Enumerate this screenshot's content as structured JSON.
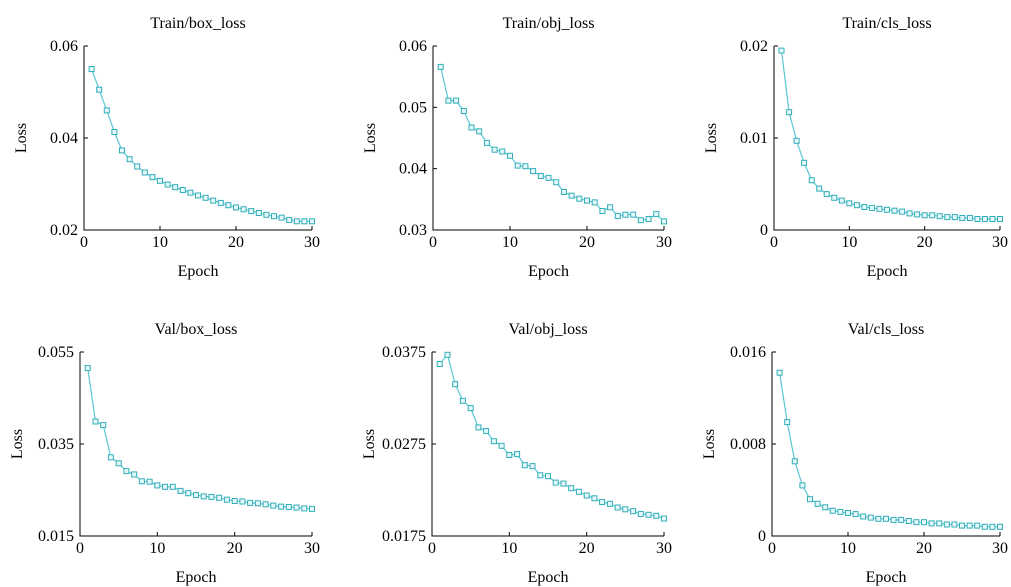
{
  "chart_data": [
    {
      "type": "line",
      "title": "Train/box_loss",
      "xlabel": "Epoch",
      "ylabel": "Loss",
      "xlim": [
        0,
        30
      ],
      "ylim": [
        0.02,
        0.06
      ],
      "xticks": [
        "0",
        "10",
        "20",
        "30"
      ],
      "yticks": [
        "0.02",
        "0.04",
        "0.06"
      ],
      "series": [
        {
          "x": [
            1,
            2,
            3,
            4,
            5,
            6,
            7,
            8,
            9,
            10,
            11,
            12,
            13,
            14,
            15,
            16,
            17,
            18,
            19,
            20,
            21,
            22,
            23,
            24,
            25,
            26,
            27,
            28,
            29,
            30
          ],
          "values": [
            0.055,
            0.0505,
            0.046,
            0.0413,
            0.0373,
            0.0354,
            0.0338,
            0.0325,
            0.0315,
            0.0307,
            0.0299,
            0.0293,
            0.0287,
            0.0281,
            0.0275,
            0.027,
            0.0264,
            0.0259,
            0.0254,
            0.0249,
            0.0245,
            0.0241,
            0.0237,
            0.0233,
            0.023,
            0.0227,
            0.0222,
            0.0219,
            0.0219,
            0.0219
          ]
        }
      ]
    },
    {
      "type": "line",
      "title": "Train/obj_loss",
      "xlabel": "Epoch",
      "ylabel": "Loss",
      "xlim": [
        0,
        30
      ],
      "ylim": [
        0.03,
        0.06
      ],
      "xticks": [
        "0",
        "10",
        "20",
        "30"
      ],
      "yticks": [
        "0.03",
        "0.04",
        "0.05",
        "0.06"
      ],
      "series": [
        {
          "x": [
            1,
            2,
            3,
            4,
            5,
            6,
            7,
            8,
            9,
            10,
            11,
            12,
            13,
            14,
            15,
            16,
            17,
            18,
            19,
            20,
            21,
            22,
            23,
            24,
            25,
            26,
            27,
            28,
            29,
            30
          ],
          "values": [
            0.0566,
            0.0511,
            0.0511,
            0.0494,
            0.0467,
            0.0461,
            0.0442,
            0.0431,
            0.0428,
            0.0421,
            0.0405,
            0.0404,
            0.0396,
            0.0388,
            0.0385,
            0.0378,
            0.0362,
            0.0356,
            0.0351,
            0.0348,
            0.0345,
            0.0331,
            0.0337,
            0.0323,
            0.0325,
            0.0325,
            0.0316,
            0.0318,
            0.0326,
            0.0314
          ]
        }
      ]
    },
    {
      "type": "line",
      "title": "Train/cls_loss",
      "xlabel": "Epoch",
      "ylabel": "Loss",
      "xlim": [
        0,
        30
      ],
      "ylim": [
        0,
        0.02
      ],
      "xticks": [
        "0",
        "10",
        "20",
        "30"
      ],
      "yticks": [
        "0",
        "0.01",
        "0.02"
      ],
      "series": [
        {
          "x": [
            1,
            2,
            3,
            4,
            5,
            6,
            7,
            8,
            9,
            10,
            11,
            12,
            13,
            14,
            15,
            16,
            17,
            18,
            19,
            20,
            21,
            22,
            23,
            24,
            25,
            26,
            27,
            28,
            29,
            30
          ],
          "values": [
            0.0195,
            0.0128,
            0.0097,
            0.0073,
            0.0054,
            0.0045,
            0.0039,
            0.0035,
            0.0032,
            0.0029,
            0.0027,
            0.0025,
            0.0024,
            0.0023,
            0.0022,
            0.0021,
            0.002,
            0.0018,
            0.0017,
            0.0016,
            0.0016,
            0.0015,
            0.0014,
            0.0014,
            0.0013,
            0.0013,
            0.0012,
            0.0012,
            0.0012,
            0.0012
          ]
        }
      ]
    },
    {
      "type": "line",
      "title": "Val/box_loss",
      "xlabel": "Epoch",
      "ylabel": "Loss",
      "xlim": [
        0,
        30
      ],
      "ylim": [
        0.015,
        0.055
      ],
      "xticks": [
        "0",
        "10",
        "20",
        "30"
      ],
      "yticks": [
        "0.015",
        "0.035",
        "0.055"
      ],
      "series": [
        {
          "x": [
            1,
            2,
            3,
            4,
            5,
            6,
            7,
            8,
            9,
            10,
            11,
            12,
            13,
            14,
            15,
            16,
            17,
            18,
            19,
            20,
            21,
            22,
            23,
            24,
            25,
            26,
            27,
            28,
            29,
            30
          ],
          "values": [
            0.0515,
            0.0399,
            0.0391,
            0.0321,
            0.0308,
            0.0291,
            0.0284,
            0.0269,
            0.0268,
            0.026,
            0.0257,
            0.0257,
            0.0248,
            0.0243,
            0.0239,
            0.0236,
            0.0235,
            0.0233,
            0.0229,
            0.0226,
            0.0225,
            0.0222,
            0.0221,
            0.0219,
            0.0216,
            0.0214,
            0.0213,
            0.0212,
            0.021,
            0.0209
          ]
        }
      ]
    },
    {
      "type": "line",
      "title": "Val/obj_loss",
      "xlabel": "Epoch",
      "ylabel": "Loss",
      "xlim": [
        0,
        30
      ],
      "ylim": [
        0.0175,
        0.0375
      ],
      "xticks": [
        "0",
        "10",
        "20",
        "30"
      ],
      "yticks": [
        "0.0175",
        "0.0275",
        "0.0375"
      ],
      "series": [
        {
          "x": [
            1,
            2,
            3,
            4,
            5,
            6,
            7,
            8,
            9,
            10,
            11,
            12,
            13,
            14,
            15,
            16,
            17,
            18,
            19,
            20,
            21,
            22,
            23,
            24,
            25,
            26,
            27,
            28,
            29,
            30
          ],
          "values": [
            0.0362,
            0.0372,
            0.034,
            0.0322,
            0.0314,
            0.0293,
            0.0289,
            0.0278,
            0.0273,
            0.0263,
            0.0264,
            0.0252,
            0.0251,
            0.0241,
            0.024,
            0.0233,
            0.0232,
            0.0227,
            0.0223,
            0.0219,
            0.0216,
            0.0212,
            0.021,
            0.0206,
            0.0204,
            0.0202,
            0.0199,
            0.0198,
            0.0197,
            0.0194
          ]
        }
      ]
    },
    {
      "type": "line",
      "title": "Val/cls_loss",
      "xlabel": "Epoch",
      "ylabel": "Loss",
      "xlim": [
        0,
        30
      ],
      "ylim": [
        0,
        0.016
      ],
      "xticks": [
        "0",
        "10",
        "20",
        "30"
      ],
      "yticks": [
        "0",
        "0.008",
        "0.016"
      ],
      "series": [
        {
          "x": [
            1,
            2,
            3,
            4,
            5,
            6,
            7,
            8,
            9,
            10,
            11,
            12,
            13,
            14,
            15,
            16,
            17,
            18,
            19,
            20,
            21,
            22,
            23,
            24,
            25,
            26,
            27,
            28,
            29,
            30
          ],
          "values": [
            0.0142,
            0.0099,
            0.0065,
            0.0044,
            0.0032,
            0.0028,
            0.0025,
            0.0022,
            0.0021,
            0.002,
            0.0019,
            0.0017,
            0.0016,
            0.0015,
            0.0015,
            0.0014,
            0.0014,
            0.0013,
            0.0012,
            0.0012,
            0.0011,
            0.0011,
            0.001,
            0.001,
            0.0009,
            0.0009,
            0.0009,
            0.0008,
            0.0008,
            0.0008
          ]
        }
      ]
    }
  ],
  "colors": {
    "series_line": "#5bc7d3",
    "marker_edge": "#32aeb9",
    "marker_fill": "#e7f8fa",
    "axis": "#000000"
  }
}
